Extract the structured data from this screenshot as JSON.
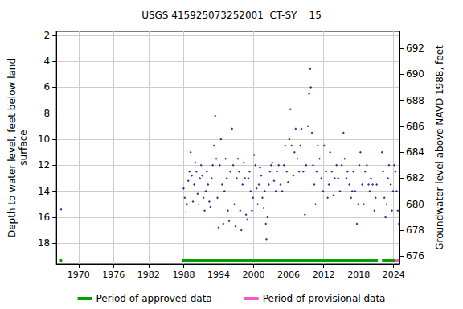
{
  "chart_data": {
    "type": "scatter",
    "title": "USGS 415925073252001  CT-SY    15",
    "y_label": "Depth to water level, feet below land\nsurface",
    "y2_label": "Groundwater level above NAVD 1988, feet",
    "color": "#00008b",
    "marker": "diamond",
    "grid": true,
    "legend": "bottom",
    "xlim": [
      1966.2,
      2025.0
    ],
    "xticks": [
      1970,
      1976,
      1982,
      1988,
      1994,
      2000,
      2006,
      2012,
      2018,
      2024
    ],
    "ylim": [
      1.7,
      19.6
    ],
    "yticks": [
      2,
      4,
      6,
      8,
      10,
      12,
      14,
      16,
      18
    ],
    "y2lim": [
      675.4,
      693.3
    ],
    "y2ticks": [
      676,
      678,
      680,
      682,
      684,
      686,
      688,
      690,
      692
    ],
    "x": [
      1967.0,
      1988.0,
      1988.2,
      1988.4,
      1988.6,
      1988.8,
      1989.0,
      1989.2,
      1989.4,
      1989.6,
      1989.8,
      1990.0,
      1990.2,
      1990.4,
      1990.6,
      1990.8,
      1991.0,
      1991.2,
      1991.4,
      1991.6,
      1991.8,
      1992.0,
      1992.2,
      1992.4,
      1992.6,
      1992.8,
      1993.0,
      1993.2,
      1993.4,
      1993.6,
      1993.8,
      1994.0,
      1994.2,
      1994.4,
      1994.6,
      1994.8,
      1995.0,
      1995.2,
      1995.4,
      1995.6,
      1995.8,
      1996.0,
      1996.3,
      1996.5,
      1996.7,
      1996.9,
      1997.1,
      1997.3,
      1997.5,
      1997.7,
      1997.9,
      1998.1,
      1998.3,
      1998.5,
      1998.7,
      1998.9,
      1999.1,
      1999.3,
      1999.5,
      1999.7,
      1999.9,
      2000.1,
      2000.3,
      2000.5,
      2000.7,
      2000.9,
      2001.1,
      2001.3,
      2001.5,
      2001.7,
      2001.9,
      2002.1,
      2002.2,
      2002.4,
      2002.6,
      2002.8,
      2003.0,
      2003.2,
      2003.5,
      2003.8,
      2004.0,
      2004.3,
      2004.6,
      2004.9,
      2005.2,
      2005.4,
      2005.7,
      2005.9,
      2006.1,
      2006.3,
      2006.5,
      2006.8,
      2007.0,
      2007.2,
      2007.5,
      2007.8,
      2008.0,
      2008.2,
      2008.5,
      2008.8,
      2009.0,
      2009.3,
      2009.5,
      2009.7,
      2009.8,
      2010.0,
      2010.2,
      2010.4,
      2010.6,
      2010.8,
      2011.0,
      2011.3,
      2011.6,
      2011.9,
      2012.1,
      2012.4,
      2012.7,
      2012.9,
      2013.1,
      2013.4,
      2013.7,
      2013.9,
      2014.2,
      2014.5,
      2014.8,
      2015.1,
      2015.4,
      2015.6,
      2015.9,
      2016.1,
      2016.4,
      2016.7,
      2016.9,
      2017.1,
      2017.4,
      2017.7,
      2017.9,
      2018.1,
      2018.3,
      2018.6,
      2018.9,
      2019.1,
      2019.4,
      2019.7,
      2019.9,
      2020.1,
      2020.4,
      2020.7,
      2020.9,
      2021.1,
      2022.0,
      2022.2,
      2022.4,
      2022.6,
      2022.8,
      2023.0,
      2023.2,
      2023.5,
      2023.7,
      2023.9,
      2024.1,
      2024.3,
      2024.5,
      2024.7,
      2024.9
    ],
    "values": [
      15.4,
      13.8,
      14.5,
      15.6,
      15.0,
      13.2,
      12.5,
      11.0,
      12.8,
      14.8,
      13.5,
      11.8,
      12.5,
      14.2,
      15.0,
      13.0,
      12.0,
      12.8,
      14.5,
      15.5,
      14.0,
      12.5,
      13.5,
      14.8,
      15.2,
      13.0,
      12.0,
      10.5,
      8.2,
      11.5,
      14.5,
      16.8,
      12.0,
      10.0,
      13.5,
      16.5,
      14.0,
      11.5,
      13.0,
      15.5,
      16.3,
      12.5,
      9.2,
      12.0,
      15.0,
      16.7,
      13.0,
      11.5,
      12.5,
      15.5,
      17.0,
      13.5,
      11.8,
      13.0,
      15.8,
      16.2,
      13.0,
      12.5,
      14.0,
      15.5,
      14.5,
      11.2,
      12.0,
      13.8,
      15.0,
      13.5,
      12.2,
      12.8,
      14.5,
      15.3,
      14.0,
      16.5,
      17.7,
      16.0,
      13.5,
      12.5,
      12.0,
      11.8,
      13.2,
      14.0,
      12.5,
      12.0,
      13.5,
      14.0,
      12.0,
      10.5,
      12.5,
      13.3,
      10.0,
      7.7,
      10.5,
      12.8,
      11.0,
      9.2,
      11.5,
      12.5,
      10.5,
      9.2,
      12.5,
      15.8,
      12.0,
      9.0,
      6.5,
      4.6,
      6.0,
      9.5,
      12.0,
      13.5,
      15.0,
      12.5,
      10.5,
      11.5,
      13.0,
      14.0,
      10.5,
      12.5,
      14.5,
      13.5,
      11.0,
      12.5,
      14.3,
      13.0,
      12.0,
      13.0,
      14.0,
      12.0,
      9.5,
      11.5,
      13.0,
      12.5,
      13.5,
      14.5,
      14.0,
      12.5,
      14.0,
      16.5,
      15.0,
      12.0,
      11.0,
      13.5,
      15.0,
      12.5,
      12.0,
      13.5,
      14.0,
      13.0,
      13.5,
      15.5,
      14.5,
      13.5,
      11.0,
      12.5,
      14.5,
      16.0,
      15.0,
      13.0,
      12.0,
      13.5,
      15.5,
      14.0,
      12.0,
      12.5,
      14.0,
      15.5,
      16.5
    ],
    "periods": [
      {
        "name": "Period of approved data",
        "color": "#00a000",
        "ranges": [
          [
            1966.8,
            1967.2
          ],
          [
            1987.8,
            2021.3
          ],
          [
            2022.0,
            2024.3
          ]
        ]
      },
      {
        "name": "Period of provisional data",
        "color": "#ff55cc",
        "ranges": [
          [
            2024.3,
            2025.0
          ]
        ]
      }
    ]
  }
}
